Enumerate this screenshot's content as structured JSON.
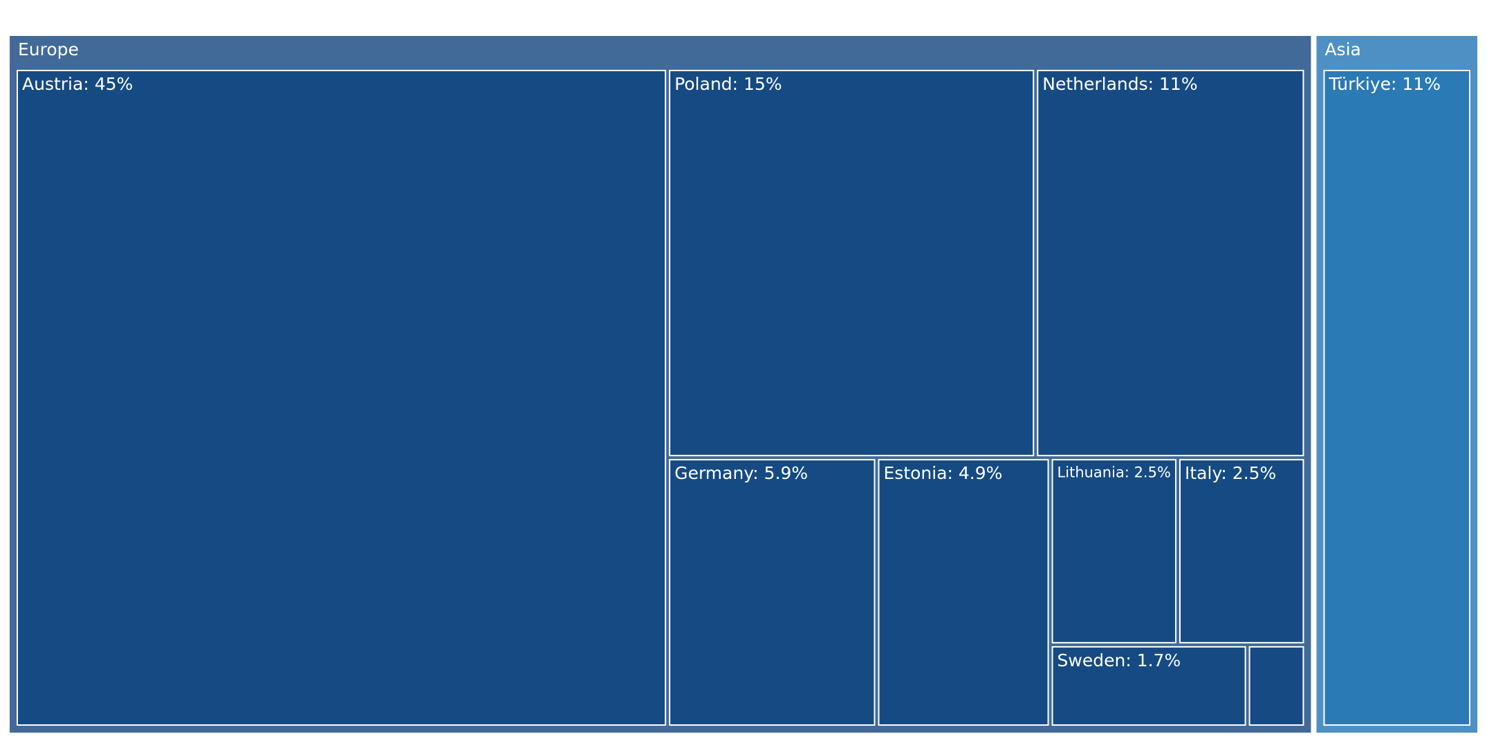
{
  "chart_data": {
    "type": "treemap",
    "groups": [
      {
        "name": "Europe",
        "color": "#426a98",
        "leaf_color": "#164a82",
        "leaves": [
          {
            "label": "Austria: 45%",
            "value": 45
          },
          {
            "label": "Poland: 15%",
            "value": 15
          },
          {
            "label": "Netherlands: 11%",
            "value": 11
          },
          {
            "label": "Germany: 5.9%",
            "value": 5.9
          },
          {
            "label": "Estonia: 4.9%",
            "value": 4.9
          },
          {
            "label": "Lithuania: 2.5%",
            "value": 2.5
          },
          {
            "label": "Italy: 2.5%",
            "value": 2.5
          },
          {
            "label": "Sweden: 1.7%",
            "value": 1.7
          },
          {
            "label": null,
            "value": 0.5
          }
        ]
      },
      {
        "name": "Asia",
        "color": "#4e90c4",
        "leaf_color": "#2a7ab5",
        "leaves": [
          {
            "label": "Türkiye: 11%",
            "value": 11
          }
        ]
      }
    ]
  }
}
